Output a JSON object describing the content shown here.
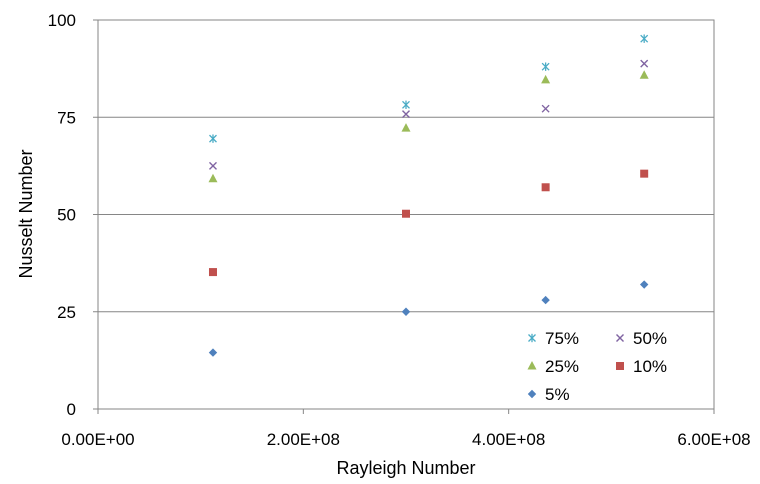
{
  "chart_data": {
    "type": "scatter",
    "title": "",
    "xlabel": "Rayleigh Number",
    "ylabel": "Nusselt Number",
    "xlim": [
      0,
      600000000
    ],
    "ylim": [
      0,
      100
    ],
    "xticks": [
      {
        "value": 0,
        "label": "0.00E+00"
      },
      {
        "value": 200000000,
        "label": "2.00E+08"
      },
      {
        "value": 400000000,
        "label": "4.00E+08"
      },
      {
        "value": 600000000,
        "label": "6.00E+08"
      }
    ],
    "yticks": [
      {
        "value": 0,
        "label": "0"
      },
      {
        "value": 25,
        "label": "25"
      },
      {
        "value": 50,
        "label": "50"
      },
      {
        "value": 75,
        "label": "75"
      },
      {
        "value": 100,
        "label": "100"
      }
    ],
    "grid": "horizontal",
    "legend_position": "bottom-right",
    "series": [
      {
        "name": "75%",
        "marker": "asterisk",
        "color": "#4bacc6",
        "points": [
          [
            112000000,
            69.5
          ],
          [
            300000000,
            78.2
          ],
          [
            436000000,
            88.0
          ],
          [
            532000000,
            95.2
          ]
        ]
      },
      {
        "name": "50%",
        "marker": "x",
        "color": "#8064a2",
        "points": [
          [
            112000000,
            62.5
          ],
          [
            300000000,
            75.8
          ],
          [
            436000000,
            77.2
          ],
          [
            532000000,
            88.8
          ]
        ]
      },
      {
        "name": "25%",
        "marker": "triangle",
        "color": "#9bbb59",
        "points": [
          [
            112000000,
            59.2
          ],
          [
            300000000,
            72.2
          ],
          [
            436000000,
            84.6
          ],
          [
            532000000,
            85.8
          ]
        ]
      },
      {
        "name": "10%",
        "marker": "square",
        "color": "#c0504d",
        "points": [
          [
            112000000,
            35.2
          ],
          [
            300000000,
            50.2
          ],
          [
            436000000,
            57.0
          ],
          [
            532000000,
            60.5
          ]
        ]
      },
      {
        "name": "5%",
        "marker": "diamond",
        "color": "#4f81bd",
        "points": [
          [
            112000000,
            14.5
          ],
          [
            300000000,
            25.0
          ],
          [
            436000000,
            28.0
          ],
          [
            532000000,
            32.0
          ]
        ]
      }
    ]
  }
}
